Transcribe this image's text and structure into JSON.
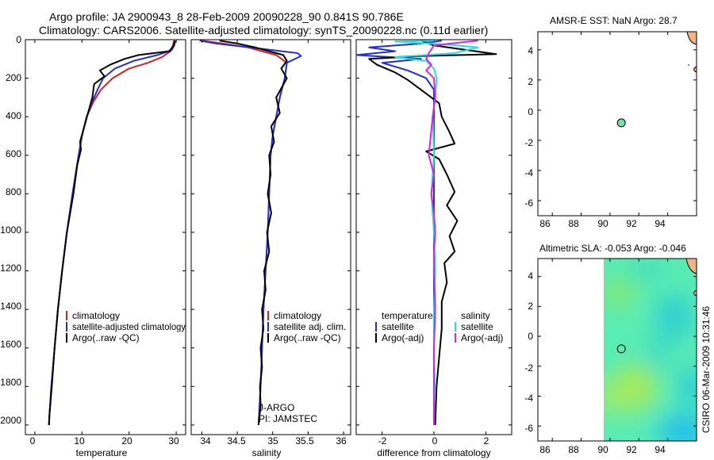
{
  "title": {
    "line1": "Argo profile: JA 2900943_8 28-Feb-2009 20090228_90 0.841S 90.786E",
    "line2": "Climatology: CARS2006. Satellite-adjusted climatology: synTS_20090228.nc (0.11d earlier)"
  },
  "colors": {
    "climatology": "#e0201b",
    "satellite": "#1f2ee0",
    "argo": "#000000",
    "salinity_satellite": "#1ee0e6",
    "salinity_argo": "#e01ee6",
    "sla_fill": "#59ecb4",
    "marker_sst": "#73e3a8",
    "land": "#f2b482"
  },
  "chart_data": [
    {
      "type": "line",
      "name": "temperature-profile",
      "xlabel": "temperature",
      "ylabel": "",
      "xlim": [
        -2,
        32
      ],
      "ylim": [
        2050,
        0
      ],
      "xticks": [
        0,
        10,
        20,
        30
      ],
      "yticks": [
        0,
        200,
        400,
        600,
        800,
        1000,
        1200,
        1400,
        1600,
        1800,
        2000
      ],
      "legend": [
        "climatology",
        "satellite-adjusted climatology",
        "Argo(..raw -QC)"
      ],
      "series": [
        {
          "name": "climatology",
          "color_key": "climatology",
          "points": [
            [
              29.5,
              5
            ],
            [
              29.3,
              30
            ],
            [
              28.8,
              60
            ],
            [
              27,
              90
            ],
            [
              24,
              120
            ],
            [
              20,
              150
            ],
            [
              16.5,
              200
            ],
            [
              14,
              260
            ],
            [
              12.5,
              320
            ],
            [
              11,
              400
            ],
            [
              10,
              500
            ],
            [
              9.3,
              600
            ],
            [
              8,
              800
            ],
            [
              6.8,
              1000
            ],
            [
              5.8,
              1200
            ],
            [
              4.9,
              1400
            ],
            [
              4.2,
              1600
            ],
            [
              3.5,
              1800
            ],
            [
              3.1,
              1950
            ],
            [
              3,
              2000
            ]
          ]
        },
        {
          "name": "satellite-adjusted climatology",
          "color_key": "satellite",
          "points": [
            [
              29.8,
              5
            ],
            [
              29.6,
              30
            ],
            [
              29,
              55
            ],
            [
              26,
              80
            ],
            [
              21,
              110
            ],
            [
              17,
              150
            ],
            [
              14.5,
              200
            ],
            [
              13.3,
              260
            ],
            [
              12.2,
              320
            ],
            [
              11,
              400
            ],
            [
              10,
              500
            ],
            [
              9.3,
              600
            ],
            [
              8,
              800
            ],
            [
              6.8,
              1000
            ],
            [
              5.8,
              1200
            ],
            [
              4.9,
              1400
            ],
            [
              4.2,
              1600
            ],
            [
              3.5,
              1800
            ],
            [
              3.1,
              1950
            ],
            [
              3,
              2000
            ]
          ]
        },
        {
          "name": "Argo(..raw -QC)",
          "color_key": "argo",
          "points": [
            [
              29.7,
              5
            ],
            [
              29.5,
              30
            ],
            [
              28.5,
              60
            ],
            [
              22,
              80
            ],
            [
              19,
              100
            ],
            [
              16,
              130
            ],
            [
              13.8,
              160
            ],
            [
              14.8,
              190
            ],
            [
              12.6,
              230
            ],
            [
              12.2,
              300
            ],
            [
              11.3,
              380
            ],
            [
              10.5,
              450
            ],
            [
              9.6,
              530
            ],
            [
              9.8,
              570
            ],
            [
              9,
              650
            ],
            [
              8.2,
              800
            ],
            [
              6.8,
              1000
            ],
            [
              5.8,
              1200
            ],
            [
              4.9,
              1400
            ],
            [
              4.2,
              1600
            ],
            [
              3.6,
              1800
            ],
            [
              3.1,
              1950
            ],
            [
              3,
              2000
            ]
          ]
        }
      ]
    },
    {
      "type": "line",
      "name": "salinity-profile",
      "xlabel": "salinity",
      "xlim": [
        33.85,
        36.1
      ],
      "ylim": [
        2050,
        0
      ],
      "xticks": [
        34,
        34.5,
        35,
        35.5,
        36
      ],
      "legend": [
        "climatology",
        "satellite adj. clim.",
        "Argo(..raw -QC)"
      ],
      "annotations": [
        "J-ARGO",
        "PI: JAMSTEC"
      ],
      "series": [
        {
          "name": "climatology",
          "color_key": "climatology",
          "points": [
            [
              34.0,
              5
            ],
            [
              34.3,
              20
            ],
            [
              34.65,
              40
            ],
            [
              34.85,
              60
            ],
            [
              35.05,
              80
            ],
            [
              35.2,
              120
            ],
            [
              35.17,
              200
            ],
            [
              35.1,
              300
            ],
            [
              35.05,
              400
            ],
            [
              35.0,
              500
            ],
            [
              34.97,
              600
            ],
            [
              34.95,
              800
            ],
            [
              34.93,
              1000
            ],
            [
              34.9,
              1200
            ],
            [
              34.87,
              1400
            ],
            [
              34.85,
              1600
            ],
            [
              34.83,
              1800
            ],
            [
              34.8,
              2000
            ]
          ]
        },
        {
          "name": "satellite adj. clim.",
          "color_key": "satellite",
          "points": [
            [
              33.97,
              5
            ],
            [
              34.2,
              20
            ],
            [
              34.55,
              35
            ],
            [
              34.9,
              50
            ],
            [
              35.35,
              70
            ],
            [
              35.4,
              85
            ],
            [
              35.2,
              120
            ],
            [
              35.17,
              200
            ],
            [
              35.1,
              300
            ],
            [
              35.05,
              400
            ],
            [
              35.0,
              500
            ],
            [
              34.97,
              600
            ],
            [
              34.95,
              800
            ],
            [
              34.93,
              1000
            ],
            [
              34.9,
              1200
            ],
            [
              34.87,
              1400
            ],
            [
              34.85,
              1600
            ],
            [
              34.83,
              1800
            ],
            [
              34.8,
              2000
            ]
          ]
        },
        {
          "name": "Argo(..raw -QC)",
          "color_key": "argo",
          "points": [
            [
              34.25,
              5
            ],
            [
              34.5,
              20
            ],
            [
              34.75,
              40
            ],
            [
              34.95,
              60
            ],
            [
              35.15,
              80
            ],
            [
              35.2,
              110
            ],
            [
              35.12,
              150
            ],
            [
              35.2,
              200
            ],
            [
              35.05,
              300
            ],
            [
              35.1,
              380
            ],
            [
              34.98,
              450
            ],
            [
              35.02,
              530
            ],
            [
              34.95,
              600
            ],
            [
              34.97,
              700
            ],
            [
              34.93,
              800
            ],
            [
              34.98,
              900
            ],
            [
              34.92,
              1000
            ],
            [
              34.95,
              1100
            ],
            [
              34.88,
              1200
            ],
            [
              34.9,
              1300
            ],
            [
              34.85,
              1400
            ],
            [
              34.87,
              1500
            ],
            [
              34.83,
              1600
            ],
            [
              34.85,
              1700
            ],
            [
              34.82,
              1800
            ],
            [
              34.83,
              1900
            ],
            [
              34.8,
              2000
            ]
          ]
        }
      ]
    },
    {
      "type": "line",
      "name": "difference-from-climatology",
      "xlabel": "difference from climatology",
      "xlim": [
        -3,
        3
      ],
      "ylim": [
        2050,
        0
      ],
      "xticks": [
        -2,
        0,
        2
      ],
      "legend": {
        "temperature_header": "temperature",
        "salinity_header": "salinity",
        "temperature_items": [
          "satellite",
          "Argo(-adj)"
        ],
        "salinity_items": [
          "satellite",
          "Argo(-adj)"
        ]
      },
      "series": [
        {
          "name": "temperature satellite",
          "color_key": "satellite",
          "points": [
            [
              0.3,
              5
            ],
            [
              -0.5,
              20
            ],
            [
              -2.5,
              40
            ],
            [
              -1.5,
              60
            ],
            [
              -3,
              80
            ],
            [
              -0.5,
              100
            ],
            [
              -2,
              120
            ],
            [
              -1,
              160
            ],
            [
              -0.3,
              200
            ],
            [
              0,
              260
            ],
            [
              0,
              320
            ],
            [
              0,
              400
            ],
            [
              0,
              500
            ],
            [
              0,
              800
            ],
            [
              0,
              1200
            ],
            [
              0,
              1600
            ],
            [
              0,
              2000
            ]
          ]
        },
        {
          "name": "temperature Argo(-adj)",
          "color_key": "argo",
          "points": [
            [
              -0.5,
              5
            ],
            [
              0,
              30
            ],
            [
              2.4,
              75
            ],
            [
              -0.5,
              85
            ],
            [
              -2.5,
              100
            ],
            [
              -2.2,
              130
            ],
            [
              -1.5,
              170
            ],
            [
              -1,
              210
            ],
            [
              -0.5,
              260
            ],
            [
              0.2,
              330
            ],
            [
              0.3,
              400
            ],
            [
              0.6,
              480
            ],
            [
              0.8,
              540
            ],
            [
              -0.3,
              580
            ],
            [
              0.2,
              620
            ],
            [
              0.5,
              700
            ],
            [
              0.8,
              790
            ],
            [
              0.5,
              860
            ],
            [
              0.9,
              940
            ],
            [
              0.6,
              1020
            ],
            [
              0.8,
              1100
            ],
            [
              0.4,
              1160
            ],
            [
              0.5,
              1260
            ],
            [
              0.3,
              1360
            ],
            [
              0.3,
              1500
            ],
            [
              0.2,
              1650
            ],
            [
              0.1,
              1800
            ],
            [
              0.05,
              2000
            ]
          ]
        },
        {
          "name": "salinity satellite",
          "color_key": "salinity_satellite",
          "points": [
            [
              0,
              5
            ],
            [
              -1.5,
              10
            ],
            [
              0.5,
              25
            ],
            [
              1.7,
              40
            ],
            [
              0.8,
              70
            ],
            [
              -1.5,
              90
            ],
            [
              -0.3,
              110
            ],
            [
              0,
              150
            ],
            [
              0.1,
              200
            ],
            [
              0.05,
              300
            ],
            [
              -0.05,
              400
            ],
            [
              0,
              600
            ],
            [
              -0.1,
              800
            ],
            [
              0,
              1000
            ],
            [
              0.05,
              1200
            ],
            [
              0,
              1400
            ],
            [
              0,
              1600
            ],
            [
              0.03,
              1800
            ],
            [
              0,
              2000
            ]
          ]
        },
        {
          "name": "salinity Argo(-adj)",
          "color_key": "salinity_argo",
          "points": [
            [
              1.7,
              5
            ],
            [
              1.0,
              15
            ],
            [
              0,
              30
            ],
            [
              -0.2,
              70
            ],
            [
              -0.3,
              100
            ],
            [
              -0.1,
              130
            ],
            [
              -0.3,
              160
            ],
            [
              0,
              200
            ],
            [
              0.05,
              300
            ],
            [
              -0.05,
              400
            ],
            [
              -0.2,
              600
            ],
            [
              0,
              700
            ],
            [
              -0.1,
              800
            ],
            [
              0,
              900
            ],
            [
              0.05,
              1000
            ],
            [
              0,
              1100
            ],
            [
              0,
              1200
            ],
            [
              0.05,
              1400
            ],
            [
              0,
              1600
            ],
            [
              0,
              1800
            ],
            [
              0,
              2000
            ]
          ]
        }
      ]
    },
    {
      "type": "scatter",
      "name": "sst-map",
      "title": "AMSR-E SST: NaN Argo: 28.7",
      "xlim": [
        85,
        96
      ],
      "ylim": [
        -7,
        5.2
      ],
      "xticks": [
        86,
        88,
        90,
        92,
        94
      ],
      "yticks": [
        -6,
        -4,
        -2,
        0,
        2,
        4
      ],
      "points": [
        {
          "lon": 90.786,
          "lat": -0.841,
          "label": "Argo"
        }
      ]
    },
    {
      "type": "heatmap",
      "name": "sla-map",
      "title": "Altimetric SLA: -0.053 Argo: -0.046",
      "xlim": [
        85,
        96
      ],
      "ylim": [
        -7,
        5.2
      ],
      "xticks": [
        86,
        88,
        90,
        92,
        94
      ],
      "yticks": [
        -6,
        -4,
        -2,
        0,
        2,
        4
      ],
      "field_lon_range": [
        90,
        96
      ],
      "points": [
        {
          "lon": 90.786,
          "lat": -0.841,
          "label": "Argo"
        }
      ]
    }
  ],
  "side_label": "CSIRO 06-Mar-2009 10:31:46"
}
